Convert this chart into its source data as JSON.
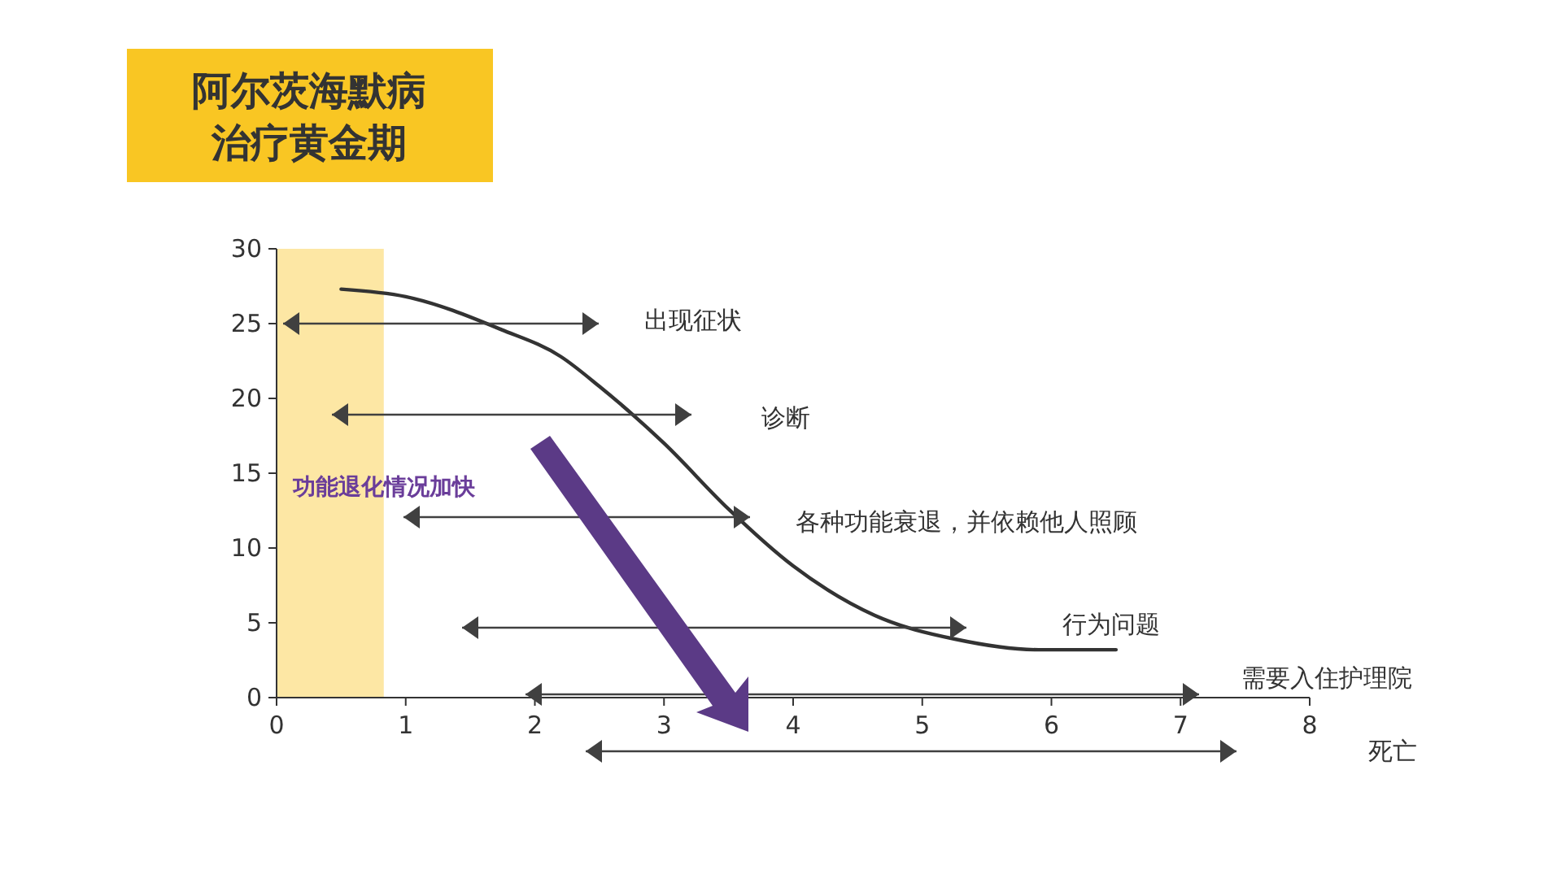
{
  "chart_data": {
    "type": "line",
    "title": "阿尔茨海默病治疗黄金期",
    "xlim": [
      0,
      8
    ],
    "ylim": [
      0,
      30
    ],
    "xticks": [
      0,
      1,
      2,
      3,
      4,
      5,
      6,
      7,
      8
    ],
    "yticks": [
      0,
      5,
      10,
      15,
      20,
      25,
      30
    ],
    "grid": false,
    "line_style": "solid",
    "series": [
      {
        "color": "#333333",
        "marker": "none",
        "x": [
          0.5,
          1.0,
          1.74,
          2.2,
          2.5,
          3.0,
          3.5,
          4.0,
          4.63,
          5.26,
          5.9,
          6.5
        ],
        "values": [
          27.3,
          26.8,
          24.6,
          22.8,
          20.8,
          17,
          12.6,
          8.8,
          5.5,
          3.9,
          3.2,
          3.2
        ]
      }
    ],
    "bands": [
      {
        "axis": "x",
        "from": 0,
        "to": 0.83,
        "color": "#fbd35a"
      }
    ],
    "annotations": [
      "出现征状",
      "诊断",
      "各种功能衰退，并依赖他人照顾",
      "行为问题",
      "需要入住护理院",
      "死亡",
      "功能退化情况加快"
    ]
  }
}
